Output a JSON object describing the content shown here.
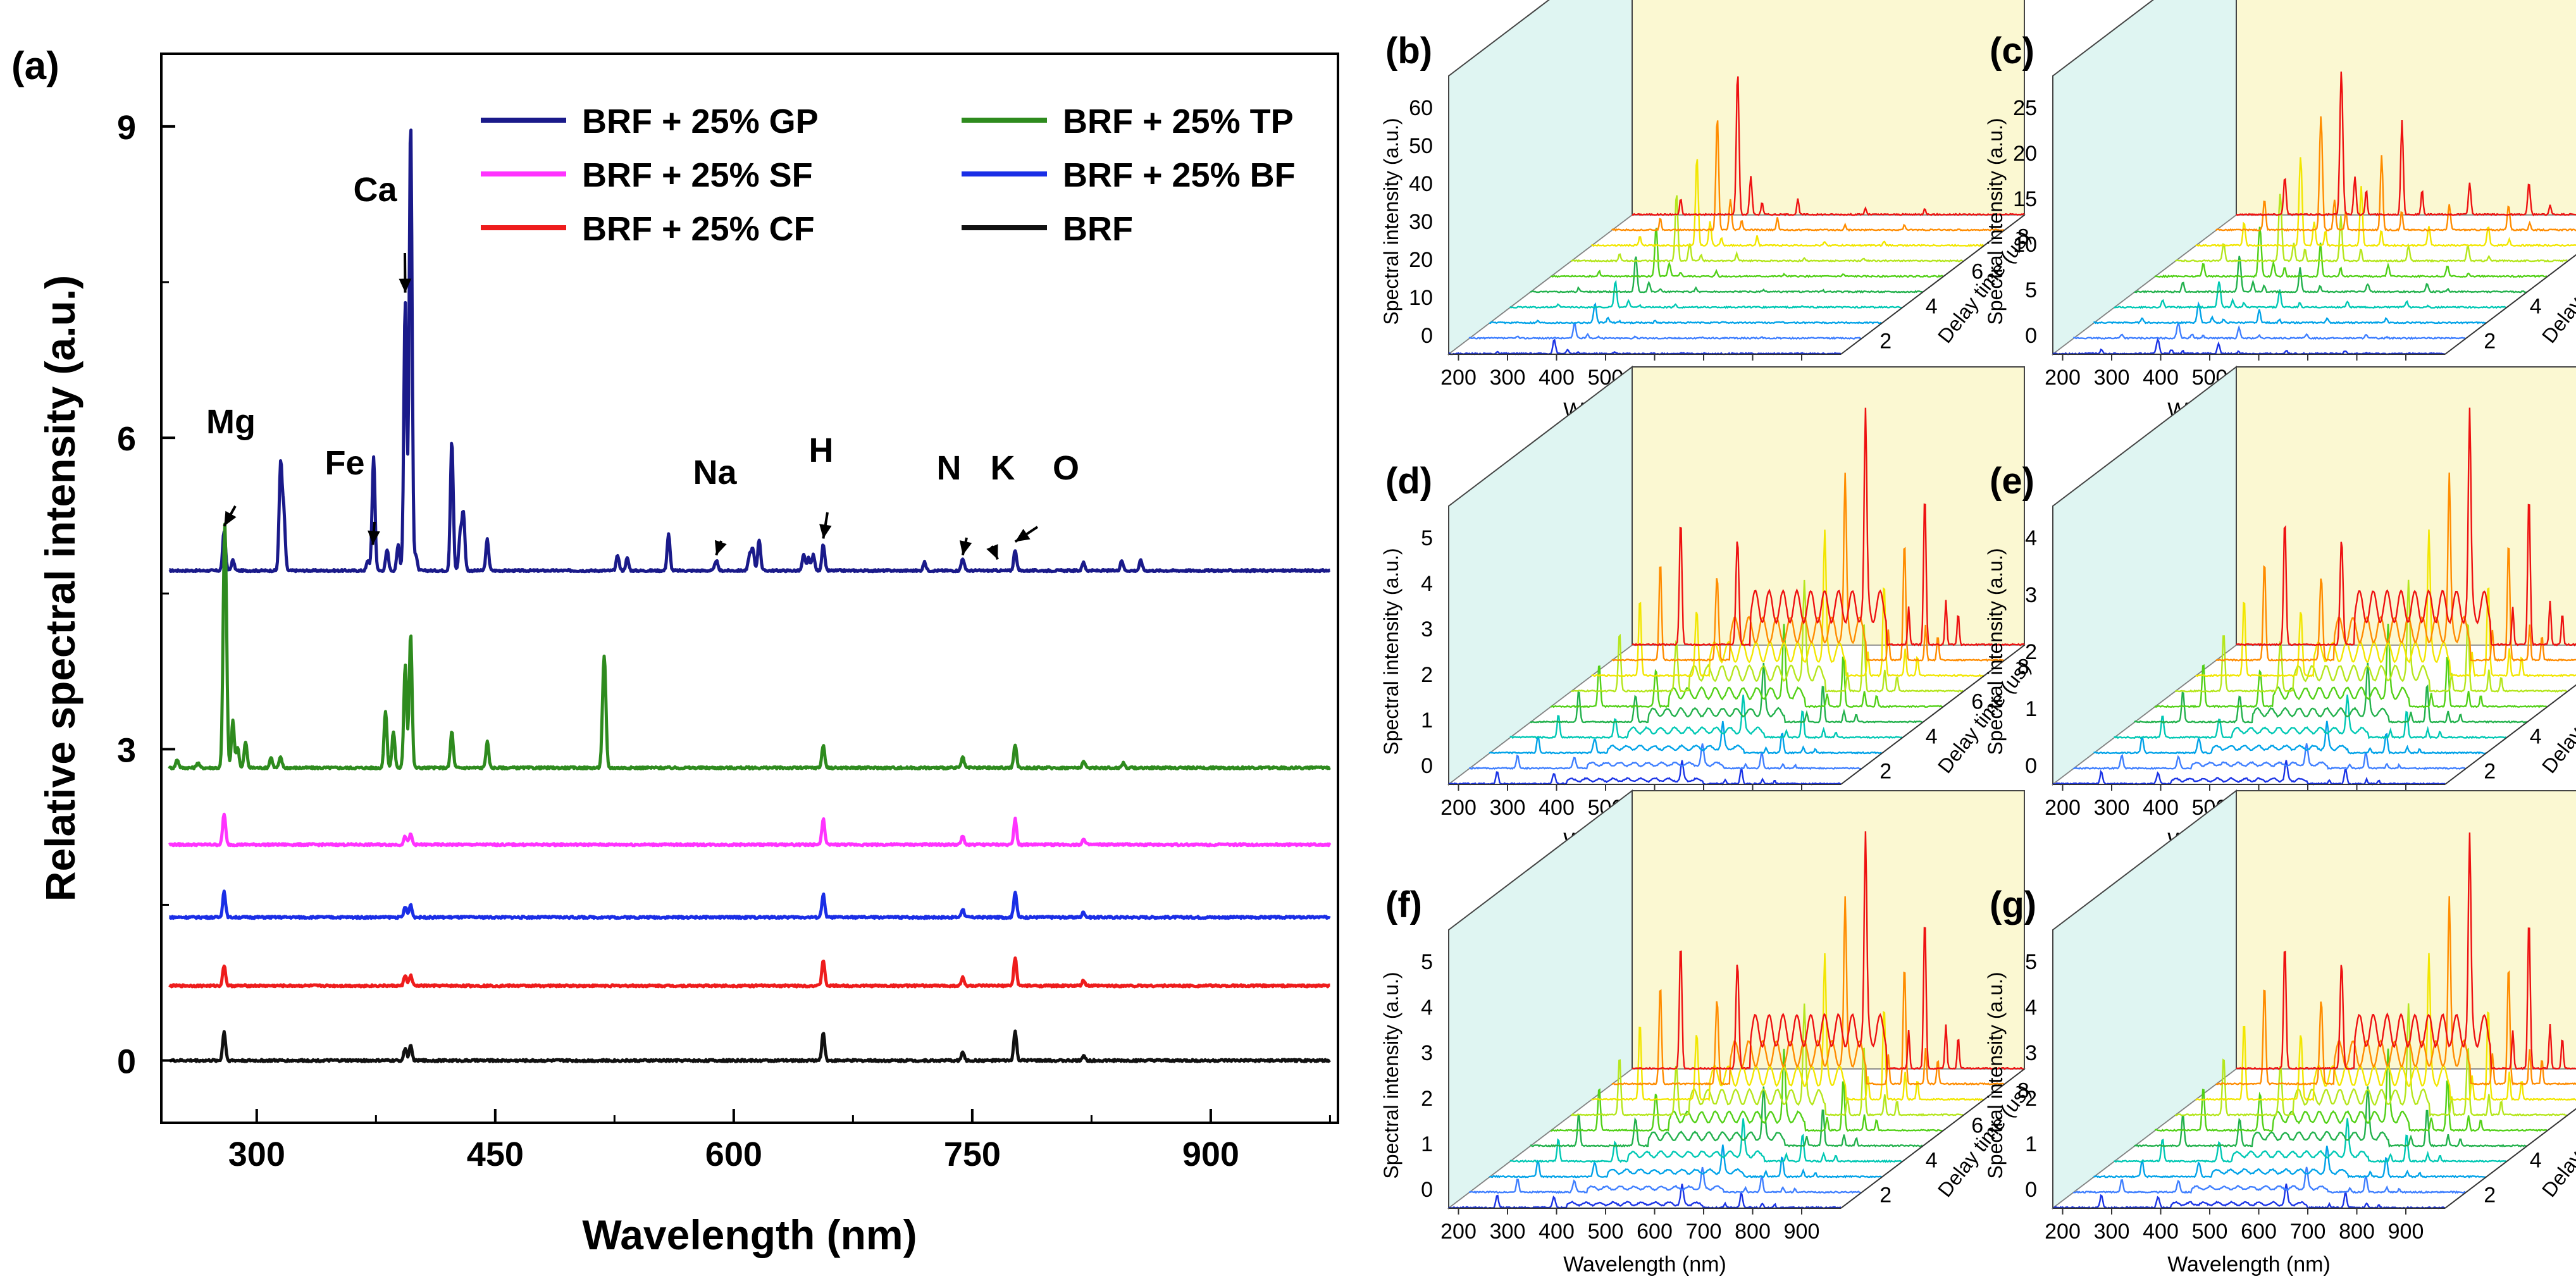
{
  "figure": {
    "panel_a": {
      "label": "(a)",
      "type": "line",
      "xlabel": "Wavelength (nm)",
      "ylabel": "Relative spectral intensity (a.u.)",
      "xlim": [
        240,
        980
      ],
      "ylim": [
        -0.6,
        9.7
      ],
      "xticks": [
        "300",
        "450",
        "600",
        "750",
        "900"
      ],
      "xtick_values": [
        300,
        450,
        600,
        750,
        900
      ],
      "yticks": [
        "0",
        "3",
        "6",
        "9"
      ],
      "ytick_values": [
        0,
        3,
        6,
        9
      ],
      "legend": [
        {
          "name": "BRF + 25% GP",
          "color": "#1a1a8a"
        },
        {
          "name": "BRF + 25% TP",
          "color": "#2e8b1e"
        },
        {
          "name": "BRF + 25% SF",
          "color": "#ff33ff"
        },
        {
          "name": "BRF + 25% BF",
          "color": "#1a2ee6"
        },
        {
          "name": "BRF + 25% CF",
          "color": "#ee1c1c"
        },
        {
          "name": "BRF",
          "color": "#111111"
        }
      ],
      "series": [
        {
          "name": "BRF + 25% GP",
          "color": "#1a1a8a",
          "baseline": 4.72,
          "peaks": [
            [
              279.5,
              0.38
            ],
            [
              285,
              0.1
            ],
            [
              315,
              1.02
            ],
            [
              317,
              0.55
            ],
            [
              370,
              0.1
            ],
            [
              373.5,
              1.1
            ],
            [
              382,
              0.2
            ],
            [
              389,
              0.25
            ],
            [
              393.4,
              2.6
            ],
            [
              396.8,
              4.35
            ],
            [
              400,
              0.15
            ],
            [
              422.7,
              1.25
            ],
            [
              428,
              0.35
            ],
            [
              430,
              0.55
            ],
            [
              445,
              0.3
            ],
            [
              527,
              0.15
            ],
            [
              533,
              0.12
            ],
            [
              559,
              0.35
            ],
            [
              589,
              0.1
            ],
            [
              610,
              0.15
            ],
            [
              612,
              0.2
            ],
            [
              616,
              0.3
            ],
            [
              644,
              0.15
            ],
            [
              647,
              0.12
            ],
            [
              650,
              0.15
            ],
            [
              656.3,
              0.25
            ],
            [
              720,
              0.08
            ],
            [
              744,
              0.12
            ],
            [
              777,
              0.2
            ],
            [
              820,
              0.08
            ],
            [
              844,
              0.1
            ],
            [
              856,
              0.1
            ]
          ]
        },
        {
          "name": "BRF + 25% TP",
          "color": "#2e8b1e",
          "baseline": 2.82,
          "peaks": [
            [
              250,
              0.08
            ],
            [
              263,
              0.05
            ],
            [
              279.5,
              1.45
            ],
            [
              280.5,
              1.3
            ],
            [
              285,
              0.45
            ],
            [
              288,
              0.2
            ],
            [
              293,
              0.25
            ],
            [
              309,
              0.1
            ],
            [
              315,
              0.1
            ],
            [
              381,
              0.55
            ],
            [
              386,
              0.35
            ],
            [
              393.4,
              1.0
            ],
            [
              396.8,
              1.3
            ],
            [
              422.7,
              0.35
            ],
            [
              445,
              0.25
            ],
            [
              518,
              0.6
            ],
            [
              519,
              0.65
            ],
            [
              656.3,
              0.22
            ],
            [
              744,
              0.1
            ],
            [
              777,
              0.22
            ],
            [
              820,
              0.06
            ],
            [
              845,
              0.05
            ]
          ]
        },
        {
          "name": "BRF + 25% SF",
          "color": "#ff33ff",
          "baseline": 2.08,
          "peaks": [
            [
              279.5,
              0.3
            ],
            [
              393.4,
              0.08
            ],
            [
              396.8,
              0.1
            ],
            [
              656.3,
              0.25
            ],
            [
              744,
              0.08
            ],
            [
              777,
              0.25
            ],
            [
              820,
              0.05
            ]
          ]
        },
        {
          "name": "BRF + 25% BF",
          "color": "#1a2ee6",
          "baseline": 1.38,
          "peaks": [
            [
              279.5,
              0.25
            ],
            [
              393.4,
              0.1
            ],
            [
              396.8,
              0.12
            ],
            [
              656.3,
              0.22
            ],
            [
              744,
              0.08
            ],
            [
              777,
              0.25
            ],
            [
              820,
              0.05
            ]
          ]
        },
        {
          "name": "BRF + 25% CF",
          "color": "#ee1c1c",
          "baseline": 0.72,
          "peaks": [
            [
              279.5,
              0.2
            ],
            [
              393.4,
              0.1
            ],
            [
              396.8,
              0.1
            ],
            [
              656.3,
              0.25
            ],
            [
              744,
              0.08
            ],
            [
              777,
              0.27
            ],
            [
              820,
              0.05
            ]
          ]
        },
        {
          "name": "BRF",
          "color": "#111111",
          "baseline": 0.0,
          "peaks": [
            [
              279.5,
              0.28
            ],
            [
              393.4,
              0.12
            ],
            [
              396.8,
              0.14
            ],
            [
              656.3,
              0.27
            ],
            [
              744,
              0.08
            ],
            [
              777,
              0.28
            ],
            [
              820,
              0.05
            ]
          ]
        }
      ],
      "annotations": [
        {
          "text": "Mg",
          "x": 279.5,
          "y": 5.1
        },
        {
          "text": "Fe",
          "x": 373,
          "y": 4.92
        },
        {
          "text": "Ca",
          "x": 393.4,
          "y": 7.35
        },
        {
          "text": "Na",
          "x": 589,
          "y": 4.82
        },
        {
          "text": "H",
          "x": 656.3,
          "y": 4.98
        },
        {
          "text": "N",
          "x": 744,
          "y": 4.82
        },
        {
          "text": "K",
          "x": 766,
          "y": 4.78
        },
        {
          "text": "O",
          "x": 777,
          "y": 4.95
        }
      ]
    },
    "panels_3d": [
      {
        "label": "(b)",
        "yticks": [
          "0",
          "10",
          "20",
          "30",
          "40",
          "50",
          "60"
        ],
        "profile": "b"
      },
      {
        "label": "(c)",
        "yticks": [
          "0",
          "5",
          "10",
          "15",
          "20",
          "25"
        ],
        "profile": "c"
      },
      {
        "label": "(d)",
        "yticks": [
          "0",
          "1",
          "2",
          "3",
          "4",
          "5"
        ],
        "profile": "d"
      },
      {
        "label": "(e)",
        "yticks": [
          "0",
          "1",
          "2",
          "3",
          "4"
        ],
        "profile": "d"
      },
      {
        "label": "(f)",
        "yticks": [
          "0",
          "1",
          "2",
          "3",
          "4",
          "5"
        ],
        "profile": "d"
      },
      {
        "label": "(g)",
        "yticks": [
          "0",
          "1",
          "2",
          "3",
          "4",
          "5"
        ],
        "profile": "d"
      }
    ],
    "panel_3d_common": {
      "xlabel": "Wavelength (nm)",
      "ylabel": "Spectral intensity (a.u.)",
      "zlabel": "Delay time (us)",
      "xticks": [
        "200",
        "300",
        "400",
        "500",
        "600",
        "700",
        "800",
        "900"
      ],
      "xtick_values": [
        200,
        300,
        400,
        500,
        600,
        700,
        800,
        900
      ],
      "xlim": [
        180,
        980
      ],
      "zticks": [
        "2",
        "4",
        "6",
        "8"
      ],
      "trace_count": 10,
      "trace_colors": [
        "#ee1111",
        "#ff8c00",
        "#f2e600",
        "#b5e61d",
        "#52d017",
        "#22b14c",
        "#00c8b4",
        "#00a2e8",
        "#3f7fff",
        "#1a33e6"
      ]
    }
  }
}
